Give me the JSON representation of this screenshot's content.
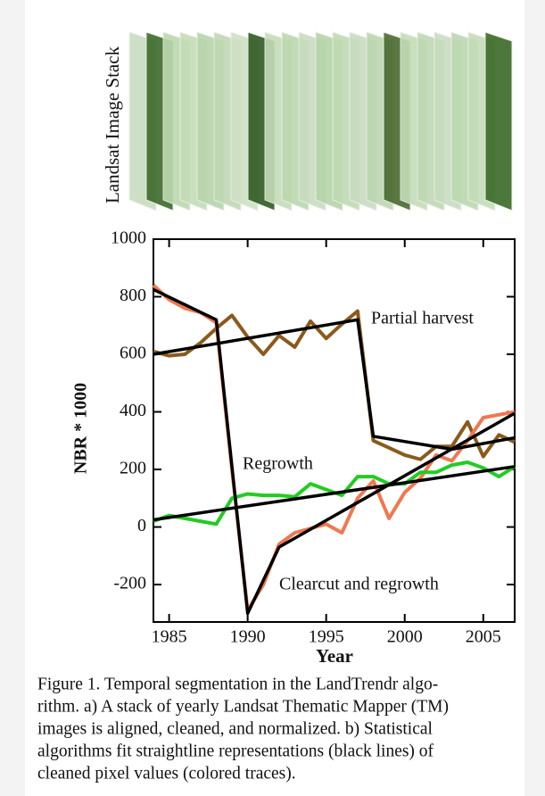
{
  "image_stack": {
    "label": "Landsat Image Stack"
  },
  "chart_data": {
    "type": "line",
    "y_label": "NBR * 1000",
    "x_label": "Year",
    "x": [
      1984,
      1985,
      1986,
      1987,
      1988,
      1989,
      1990,
      1991,
      1992,
      1993,
      1994,
      1995,
      1996,
      1997,
      1998,
      1999,
      2000,
      2001,
      2002,
      2003,
      2004,
      2005,
      2006,
      2007
    ],
    "series": [
      {
        "color": "#8b5a1a",
        "values": [
          610,
          595,
          600,
          640,
          690,
          735,
          660,
          600,
          665,
          625,
          715,
          655,
          705,
          750,
          300,
          275,
          250,
          235,
          280,
          280,
          365,
          245,
          320,
          295
        ]
      },
      {
        "color": "#f07850",
        "values": [
          840,
          790,
          760,
          745,
          710,
          200,
          -290,
          -200,
          -60,
          -20,
          -5,
          10,
          -20,
          100,
          160,
          30,
          120,
          170,
          250,
          230,
          300,
          380,
          390,
          400
        ]
      },
      {
        "color": "#22cc22",
        "values": [
          20,
          40,
          30,
          20,
          10,
          100,
          115,
          110,
          110,
          105,
          150,
          130,
          110,
          175,
          175,
          150,
          150,
          190,
          190,
          215,
          225,
          205,
          175,
          210
        ]
      }
    ],
    "fits": [
      {
        "color": "#000000",
        "x": [
          1984,
          1997,
          1998,
          2003,
          2007
        ],
        "values": [
          600,
          720,
          315,
          270,
          310
        ]
      },
      {
        "color": "#000000",
        "x": [
          1984,
          1988,
          1990,
          1992,
          2007
        ],
        "values": [
          825,
          720,
          -300,
          -70,
          395
        ]
      },
      {
        "color": "#000000",
        "x": [
          1984,
          2007
        ],
        "values": [
          25,
          210
        ]
      }
    ],
    "annotations": [
      "Partial harvest",
      "Regrowth",
      "Clearcut and regrowth"
    ],
    "xlim": [
      1984,
      2007
    ],
    "ylim": [
      -330,
      1000
    ],
    "xticks": [
      1985,
      1990,
      1995,
      2000,
      2005
    ],
    "yticks": [
      -200,
      0,
      200,
      400,
      600,
      800,
      1000
    ]
  },
  "caption": [
    "Figure 1.  Temporal segmentation in the LandTrendr algo-",
    "rithm. a) A stack of yearly Landsat Thematic Mapper (TM)",
    "images is aligned, cleaned, and normalized. b) Statistical",
    "algorithms fit straightline  representations (black lines) of",
    "cleaned pixel values (colored traces)."
  ]
}
